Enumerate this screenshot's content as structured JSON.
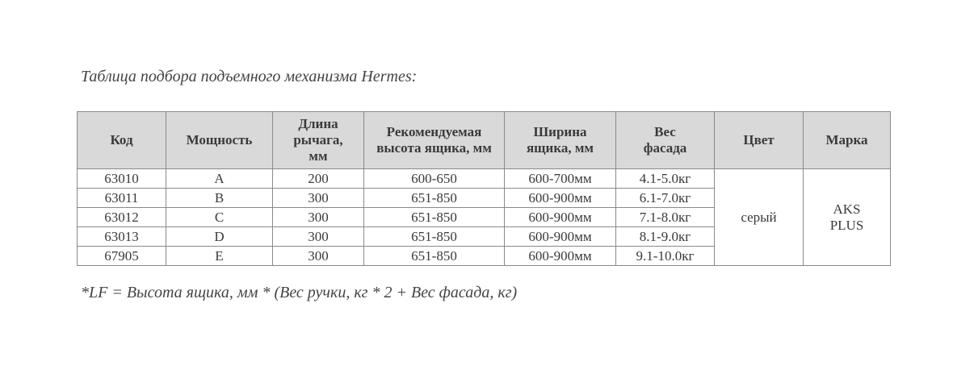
{
  "title": "Таблица подбора подъемного механизма Hermes:",
  "table": {
    "headers": [
      "Код",
      "Мощность",
      "Длина рычага, мм",
      "Рекомендуемая высота ящика, мм",
      "Ширина ящика, мм",
      "Вес фасада",
      "Цвет",
      "Марка"
    ],
    "rows": [
      [
        "63010",
        "A",
        "200",
        "600-650",
        "600-700мм",
        "4.1-5.0кг"
      ],
      [
        "63011",
        "B",
        "300",
        "651-850",
        "600-900мм",
        "6.1-7.0кг"
      ],
      [
        "63012",
        "C",
        "300",
        "651-850",
        "600-900мм",
        "7.1-8.0кг"
      ],
      [
        "63013",
        "D",
        "300",
        "651-850",
        "600-900мм",
        "8.1-9.0кг"
      ],
      [
        "67905",
        "E",
        "300",
        "651-850",
        "600-900мм",
        "9.1-10.0кг"
      ]
    ],
    "color": "серый",
    "brand": "AKS PLUS"
  },
  "footnote": "*LF = Высота ящика, мм * (Вес ручки, кг * 2 + Вес фасада, кг)"
}
